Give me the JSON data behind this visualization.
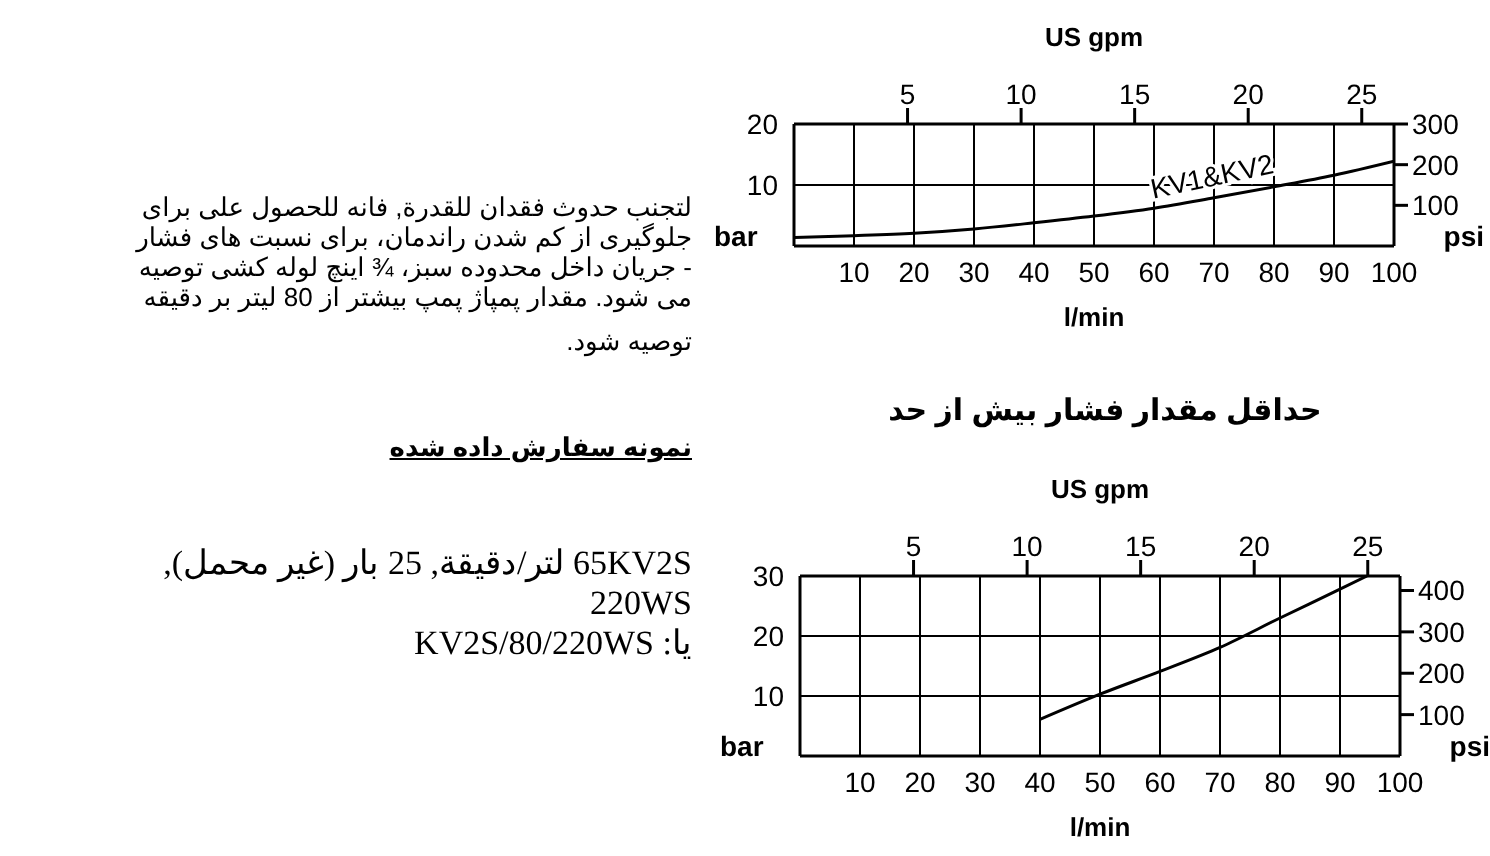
{
  "chart_data": [
    {
      "type": "line",
      "xlabel": "l/min",
      "x2label": "US gpm",
      "ylabel": "bar",
      "y2label": "psi",
      "xlim": [
        0,
        100
      ],
      "xticks": [
        10,
        20,
        30,
        40,
        50,
        60,
        70,
        80,
        90,
        100
      ],
      "x2lim": [
        0,
        26.42
      ],
      "x2ticks": [
        5,
        10,
        15,
        20,
        25
      ],
      "ylim": [
        0,
        20
      ],
      "yticks": [
        10,
        20
      ],
      "y2lim": [
        0,
        300
      ],
      "y2ticks": [
        100,
        200,
        300
      ],
      "grid": true,
      "series": [
        {
          "name": "KV1&KV2",
          "color": "#000000",
          "x": [
            0,
            10,
            20,
            30,
            40,
            50,
            60,
            70,
            80,
            90,
            100
          ],
          "values": [
            1.4,
            1.7,
            2.1,
            2.8,
            3.8,
            4.9,
            6.2,
            7.9,
            9.7,
            11.6,
            13.9
          ]
        }
      ]
    },
    {
      "type": "line",
      "title": "حداقل مقدار فشار بیش از حد",
      "xlabel": "l/min",
      "x2label": "US gpm",
      "ylabel": "bar",
      "y2label": "psi",
      "xlim": [
        0,
        100
      ],
      "xticks": [
        10,
        20,
        30,
        40,
        50,
        60,
        70,
        80,
        90,
        100
      ],
      "x2lim": [
        0,
        26.42
      ],
      "x2ticks": [
        5,
        10,
        15,
        20,
        25
      ],
      "ylim": [
        0,
        30
      ],
      "yticks": [
        10,
        20,
        30
      ],
      "y2lim": [
        0,
        435
      ],
      "y2ticks": [
        100,
        200,
        300,
        400
      ],
      "grid": true,
      "series": [
        {
          "color": "#000000",
          "x": [
            40,
            50,
            60,
            70,
            80,
            90,
            94.5
          ],
          "values": [
            6.1,
            10.3,
            14.1,
            18.1,
            23,
            27.8,
            30
          ]
        }
      ]
    },
    {
      "type": "other",
      "annotations": [
        "لتجنب حدوث فقدان للقدرة, فانه للحصول على برای",
        "جلوگیری از کم شدن راندمان، برای نسبت های فشار",
        "- جریان داخل محدوده سبز، ¾ اینچ لوله کشی توصیه",
        "می شود. مقدار پمپاژ پمپ بیشتر از 80 لیتر بر دقیقه",
        "توصیه  شود.",
        "نمونه سفارش داده شده",
        "65KV2S لتر/دقیقة, 25 بار (غیر محمل),",
        "220WS",
        "یا: KV2S/80/220WS"
      ]
    }
  ]
}
